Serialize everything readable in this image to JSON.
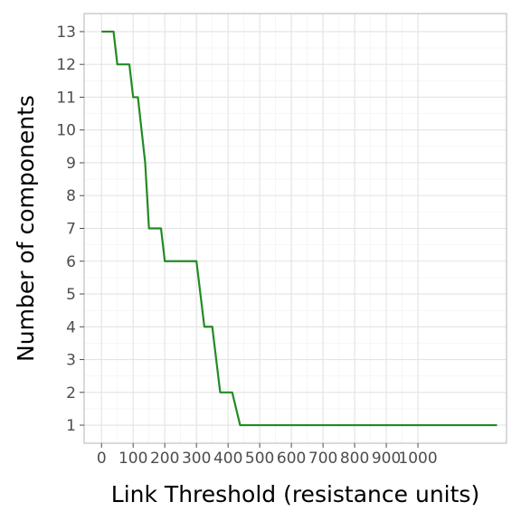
{
  "chart_data": {
    "type": "line",
    "title": "",
    "xlabel": "Link Threshold (resistance units)",
    "ylabel": "Number of components",
    "xlim": [
      -55,
      1280
    ],
    "ylim": [
      0.45,
      13.55
    ],
    "x_ticks": [
      0,
      100,
      200,
      300,
      400,
      500,
      600,
      700,
      800,
      900,
      1000
    ],
    "x_tick_labels": [
      "0",
      "100",
      "200",
      "300",
      "400",
      "500",
      "600",
      "700",
      "800",
      "900",
      "1000"
    ],
    "y_ticks": [
      1,
      2,
      3,
      4,
      5,
      6,
      7,
      8,
      9,
      10,
      11,
      12,
      13
    ],
    "y_tick_labels": [
      "1",
      "2",
      "3",
      "4",
      "5",
      "6",
      "7",
      "8",
      "9",
      "10",
      "11",
      "12",
      "13"
    ],
    "grid": true,
    "legend": "none",
    "line_color": "#228B22",
    "series": [
      {
        "x": [
          0,
          38,
          50,
          88,
          100,
          115,
          138,
          150,
          188,
          200,
          300,
          325,
          350,
          375,
          413,
          438,
          1250
        ],
        "y": [
          13,
          13,
          12,
          12,
          11,
          11,
          9,
          7,
          7,
          6,
          6,
          4,
          4,
          2,
          2,
          1,
          1
        ]
      }
    ]
  }
}
